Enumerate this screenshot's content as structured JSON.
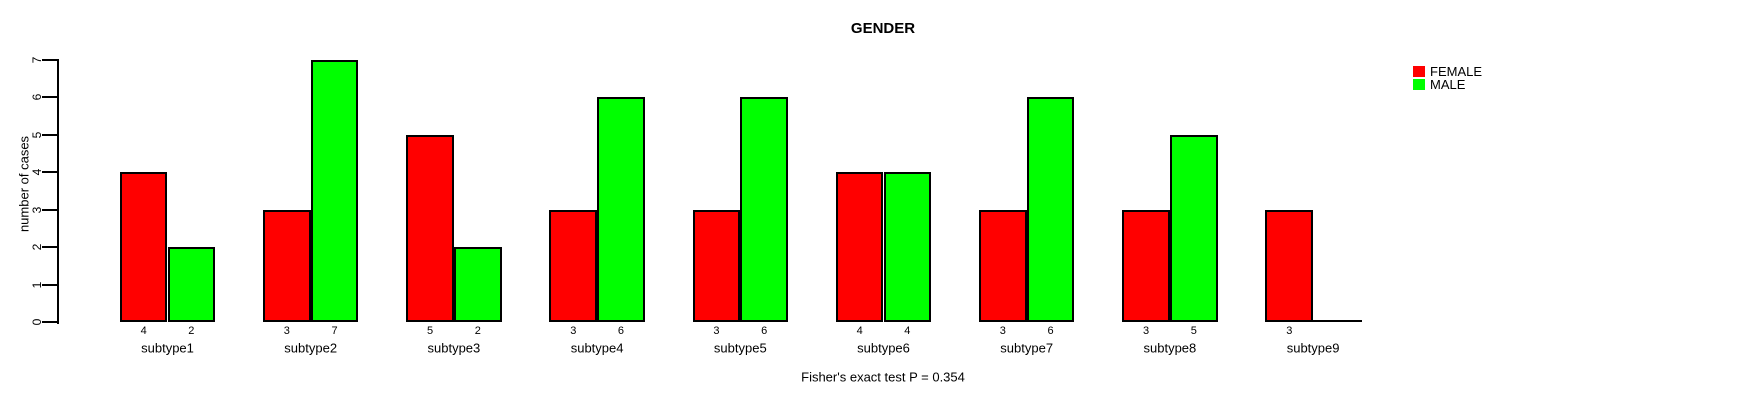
{
  "chart_data": {
    "type": "bar",
    "title": "GENDER",
    "ylabel": "number of cases",
    "xlabel": "",
    "caption": "Fisher's exact test P = 0.354",
    "categories": [
      "subtype1",
      "subtype2",
      "subtype3",
      "subtype4",
      "subtype5",
      "subtype6",
      "subtype7",
      "subtype8",
      "subtype9"
    ],
    "series": [
      {
        "name": "FEMALE",
        "color": "#ff0000",
        "values": [
          4,
          3,
          5,
          3,
          3,
          4,
          3,
          3,
          3
        ]
      },
      {
        "name": "MALE",
        "color": "#00ff00",
        "values": [
          2,
          7,
          2,
          6,
          6,
          4,
          6,
          5,
          0
        ]
      }
    ],
    "ylim": [
      0,
      7
    ],
    "yticks": [
      0,
      1,
      2,
      3,
      4,
      5,
      6,
      7
    ],
    "legend": [
      {
        "label": "FEMALE",
        "color": "#ff0000"
      },
      {
        "label": "MALE",
        "color": "#00ff00"
      }
    ],
    "legend_position": "top-right",
    "grid": false,
    "bar_value_labels_shown": true,
    "zero_value_label_hidden": true,
    "axis_color": "#000000",
    "background_color": "#ffffff"
  }
}
